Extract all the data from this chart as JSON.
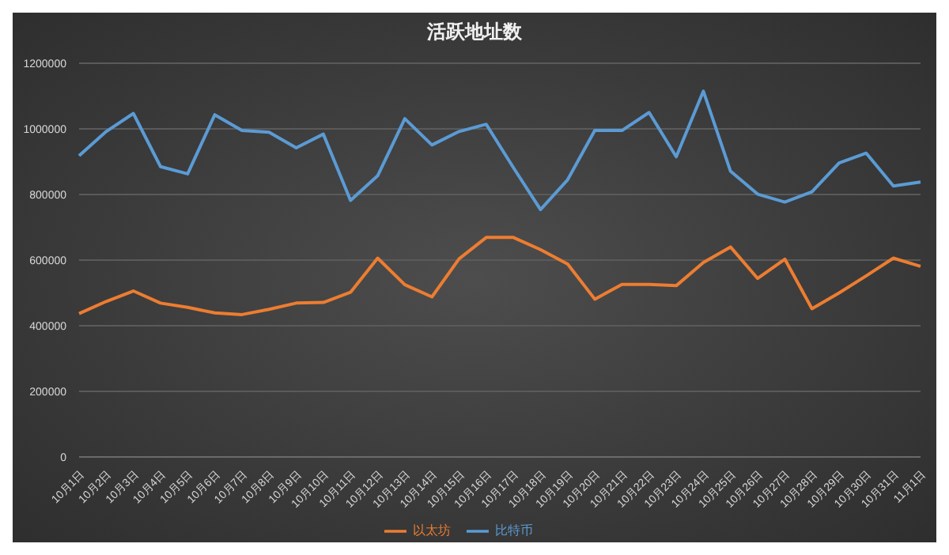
{
  "chart_data": {
    "type": "line",
    "title": "活跃地址数",
    "categories": [
      "10月1日",
      "10月2日",
      "10月3日",
      "10月4日",
      "10月5日",
      "10月6日",
      "10月7日",
      "10月8日",
      "10月9日",
      "10月10日",
      "10月11日",
      "10月12日",
      "10月13日",
      "10月14日",
      "10月15日",
      "10月16日",
      "10月17日",
      "10月18日",
      "10月19日",
      "10月20日",
      "10月21日",
      "10月22日",
      "10月23日",
      "10月24日",
      "10月25日",
      "10月26日",
      "10月27日",
      "10月28日",
      "10月29日",
      "10月30日",
      "10月31日",
      "11月1日"
    ],
    "series": [
      {
        "name": "比特币",
        "color": "#5b9bd5",
        "values": [
          918000,
          992000,
          1047000,
          885000,
          863000,
          1043000,
          995000,
          990000,
          942000,
          984000,
          782000,
          857000,
          1031000,
          951000,
          992000,
          1014000,
          882000,
          754000,
          845000,
          995000,
          995000,
          1050000,
          915000,
          1115000,
          871000,
          801000,
          777000,
          808000,
          896000,
          926000,
          826000,
          838000
        ]
      },
      {
        "name": "以太坊",
        "color": "#ed7d31",
        "values": [
          437000,
          474000,
          506000,
          469000,
          456000,
          439000,
          434000,
          450000,
          469000,
          471000,
          502000,
          606000,
          525000,
          488000,
          604000,
          669000,
          669000,
          632000,
          588000,
          481000,
          526000,
          526000,
          522000,
          593000,
          640000,
          544000,
          603000,
          452000,
          500000,
          552000,
          606000,
          581000
        ]
      }
    ],
    "ylim": [
      0,
      1200000
    ],
    "yticks": [
      0,
      200000,
      400000,
      600000,
      800000,
      1000000,
      1200000
    ],
    "grid": "y",
    "legend": "bottom",
    "marker": "none",
    "line_style": "solid"
  }
}
